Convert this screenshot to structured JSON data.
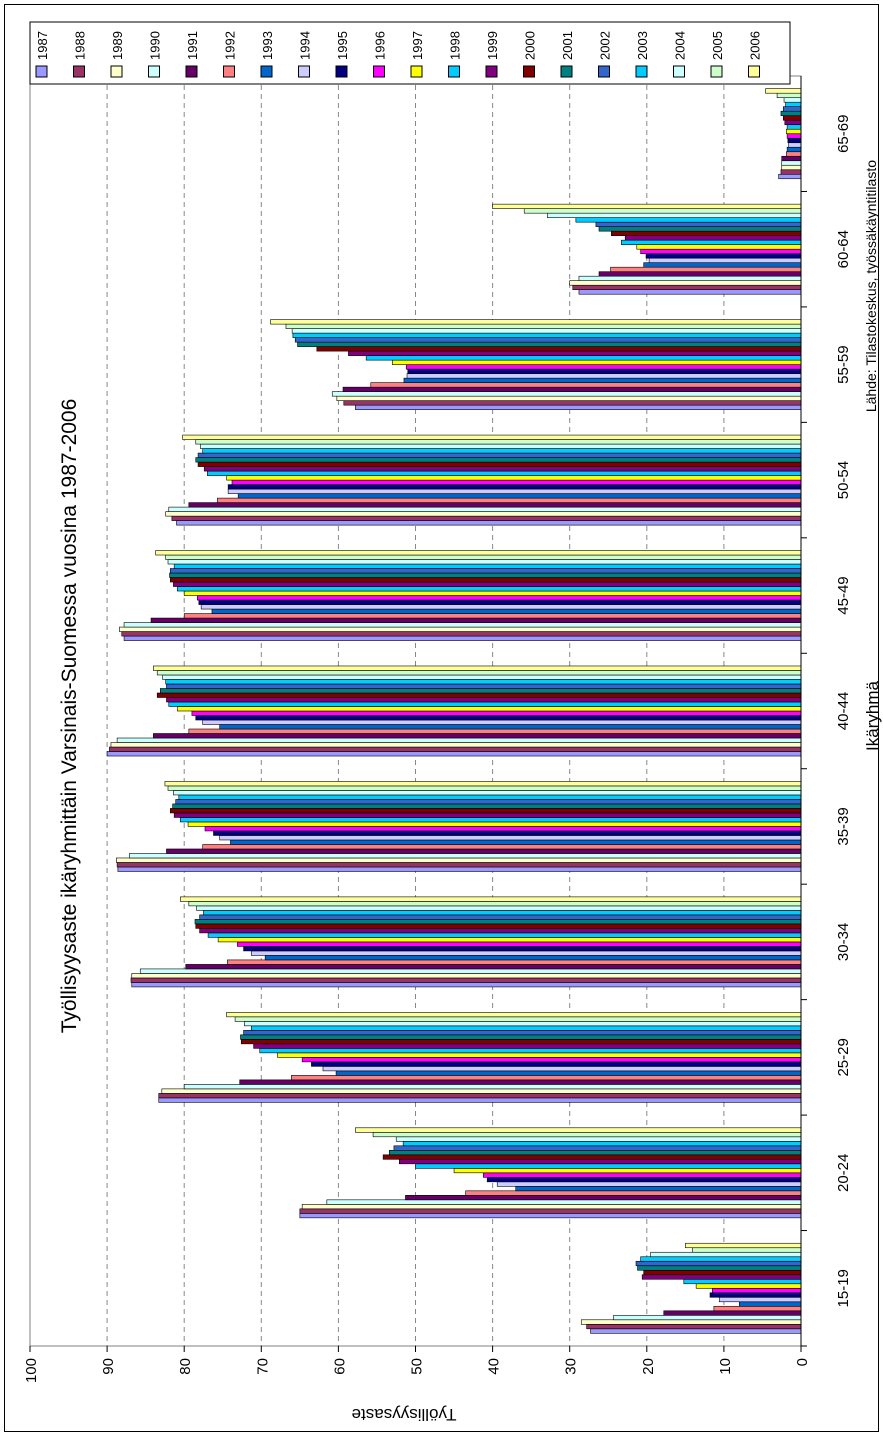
{
  "chart_data": {
    "type": "bar",
    "orientation": "horizontal-bars, image rotated 90° counter-clockwise",
    "title": "Työllisyysaste ikäryhmittäin Varsinais-Suomessa vuosina 1987-2006",
    "xlabel": "Ikäryhmä",
    "ylabel": "Työllisyysaste",
    "source": "Lähde: Tilastokeskus, työssäkäyntitilasto",
    "ylim": [
      0,
      100
    ],
    "yticks": [
      "0",
      "10",
      "20",
      "30",
      "40",
      "50",
      "60",
      "70",
      "80",
      "90",
      "100"
    ],
    "grid": "dashed",
    "legend_position": "top-right",
    "categories": [
      "15-19",
      "20-24",
      "25-29",
      "30-34",
      "35-39",
      "40-44",
      "45-49",
      "50-54",
      "55-59",
      "60-64",
      "65-69"
    ],
    "series": [
      {
        "name": "1987",
        "color": "#9999ff",
        "values": [
          27.3,
          65.0,
          83.3,
          86.8,
          88.6,
          90.0,
          87.8,
          81.0,
          57.8,
          28.8,
          2.9
        ]
      },
      {
        "name": "1988",
        "color": "#993366",
        "values": [
          27.8,
          65.0,
          83.3,
          86.9,
          88.7,
          89.7,
          88.1,
          81.6,
          59.3,
          29.6,
          2.6
        ]
      },
      {
        "name": "1989",
        "color": "#ffffcc",
        "values": [
          28.5,
          64.7,
          82.9,
          86.8,
          88.8,
          89.5,
          88.4,
          82.4,
          60.2,
          30.0,
          2.5
        ]
      },
      {
        "name": "1990",
        "color": "#ccffff",
        "values": [
          24.3,
          61.5,
          80.0,
          85.7,
          87.1,
          88.7,
          87.8,
          82.0,
          60.8,
          28.8,
          2.5
        ]
      },
      {
        "name": "1991",
        "color": "#660066",
        "values": [
          17.8,
          51.3,
          72.8,
          79.8,
          82.3,
          84.0,
          84.3,
          79.4,
          59.4,
          26.2,
          2.5
        ]
      },
      {
        "name": "1992",
        "color": "#ff8080",
        "values": [
          11.3,
          43.5,
          66.1,
          74.4,
          77.6,
          79.4,
          80.0,
          75.7,
          55.8,
          24.7,
          1.9
        ]
      },
      {
        "name": "1993",
        "color": "#0066cc",
        "values": [
          8.0,
          37.0,
          60.3,
          69.5,
          74.0,
          75.4,
          76.4,
          73.0,
          51.5,
          20.4,
          1.8
        ]
      },
      {
        "name": "1994",
        "color": "#ccccff",
        "values": [
          10.6,
          39.4,
          62.0,
          71.3,
          75.4,
          77.6,
          77.8,
          74.3,
          51.1,
          19.7,
          1.6
        ]
      },
      {
        "name": "1995",
        "color": "#000080",
        "values": [
          11.8,
          40.7,
          63.5,
          72.3,
          76.2,
          78.5,
          78.1,
          74.3,
          51.0,
          20.1,
          1.7
        ]
      },
      {
        "name": "1996",
        "color": "#ff00ff",
        "values": [
          11.5,
          41.2,
          64.7,
          73.1,
          77.3,
          79.0,
          78.3,
          73.8,
          51.2,
          20.8,
          1.8
        ]
      },
      {
        "name": "1997",
        "color": "#ffff00",
        "values": [
          13.6,
          45.0,
          67.9,
          75.6,
          79.5,
          80.9,
          80.0,
          74.5,
          53.0,
          21.3,
          1.9
        ]
      },
      {
        "name": "1998",
        "color": "#00ccff",
        "values": [
          15.2,
          50.0,
          70.2,
          76.9,
          80.5,
          82.0,
          80.9,
          77.0,
          56.4,
          23.3,
          1.8
        ]
      },
      {
        "name": "1999",
        "color": "#800080",
        "values": [
          20.6,
          52.1,
          71.0,
          78.0,
          81.3,
          82.3,
          81.4,
          77.4,
          58.7,
          22.8,
          2.1
        ]
      },
      {
        "name": "2000",
        "color": "#800000",
        "values": [
          20.4,
          54.2,
          72.6,
          78.5,
          81.8,
          83.5,
          81.8,
          78.2,
          62.8,
          24.6,
          2.3
        ]
      },
      {
        "name": "2001",
        "color": "#008080",
        "values": [
          21.2,
          53.4,
          72.7,
          78.6,
          81.5,
          83.1,
          81.9,
          78.5,
          65.3,
          26.2,
          2.6
        ]
      },
      {
        "name": "2002",
        "color": "#3366cc",
        "values": [
          21.4,
          52.8,
          72.3,
          78.0,
          81.1,
          82.3,
          81.8,
          78.2,
          65.6,
          26.6,
          2.3
        ]
      },
      {
        "name": "2003",
        "color": "#00ccff",
        "values": [
          20.8,
          51.6,
          71.3,
          77.5,
          80.7,
          82.4,
          81.3,
          77.6,
          65.9,
          29.2,
          2.0
        ]
      },
      {
        "name": "2004",
        "color": "#ccffff",
        "values": [
          19.5,
          52.5,
          72.2,
          78.4,
          81.4,
          82.8,
          82.1,
          77.9,
          66.0,
          32.9,
          2.2
        ]
      },
      {
        "name": "2005",
        "color": "#ccffcc",
        "values": [
          14.1,
          55.5,
          73.4,
          79.4,
          82.1,
          83.5,
          82.4,
          78.5,
          66.8,
          35.9,
          3.1
        ]
      },
      {
        "name": "2006",
        "color": "#ffff99",
        "values": [
          15.0,
          57.8,
          74.5,
          80.5,
          82.5,
          84.0,
          83.7,
          80.2,
          68.8,
          40.0,
          4.6
        ]
      }
    ]
  }
}
